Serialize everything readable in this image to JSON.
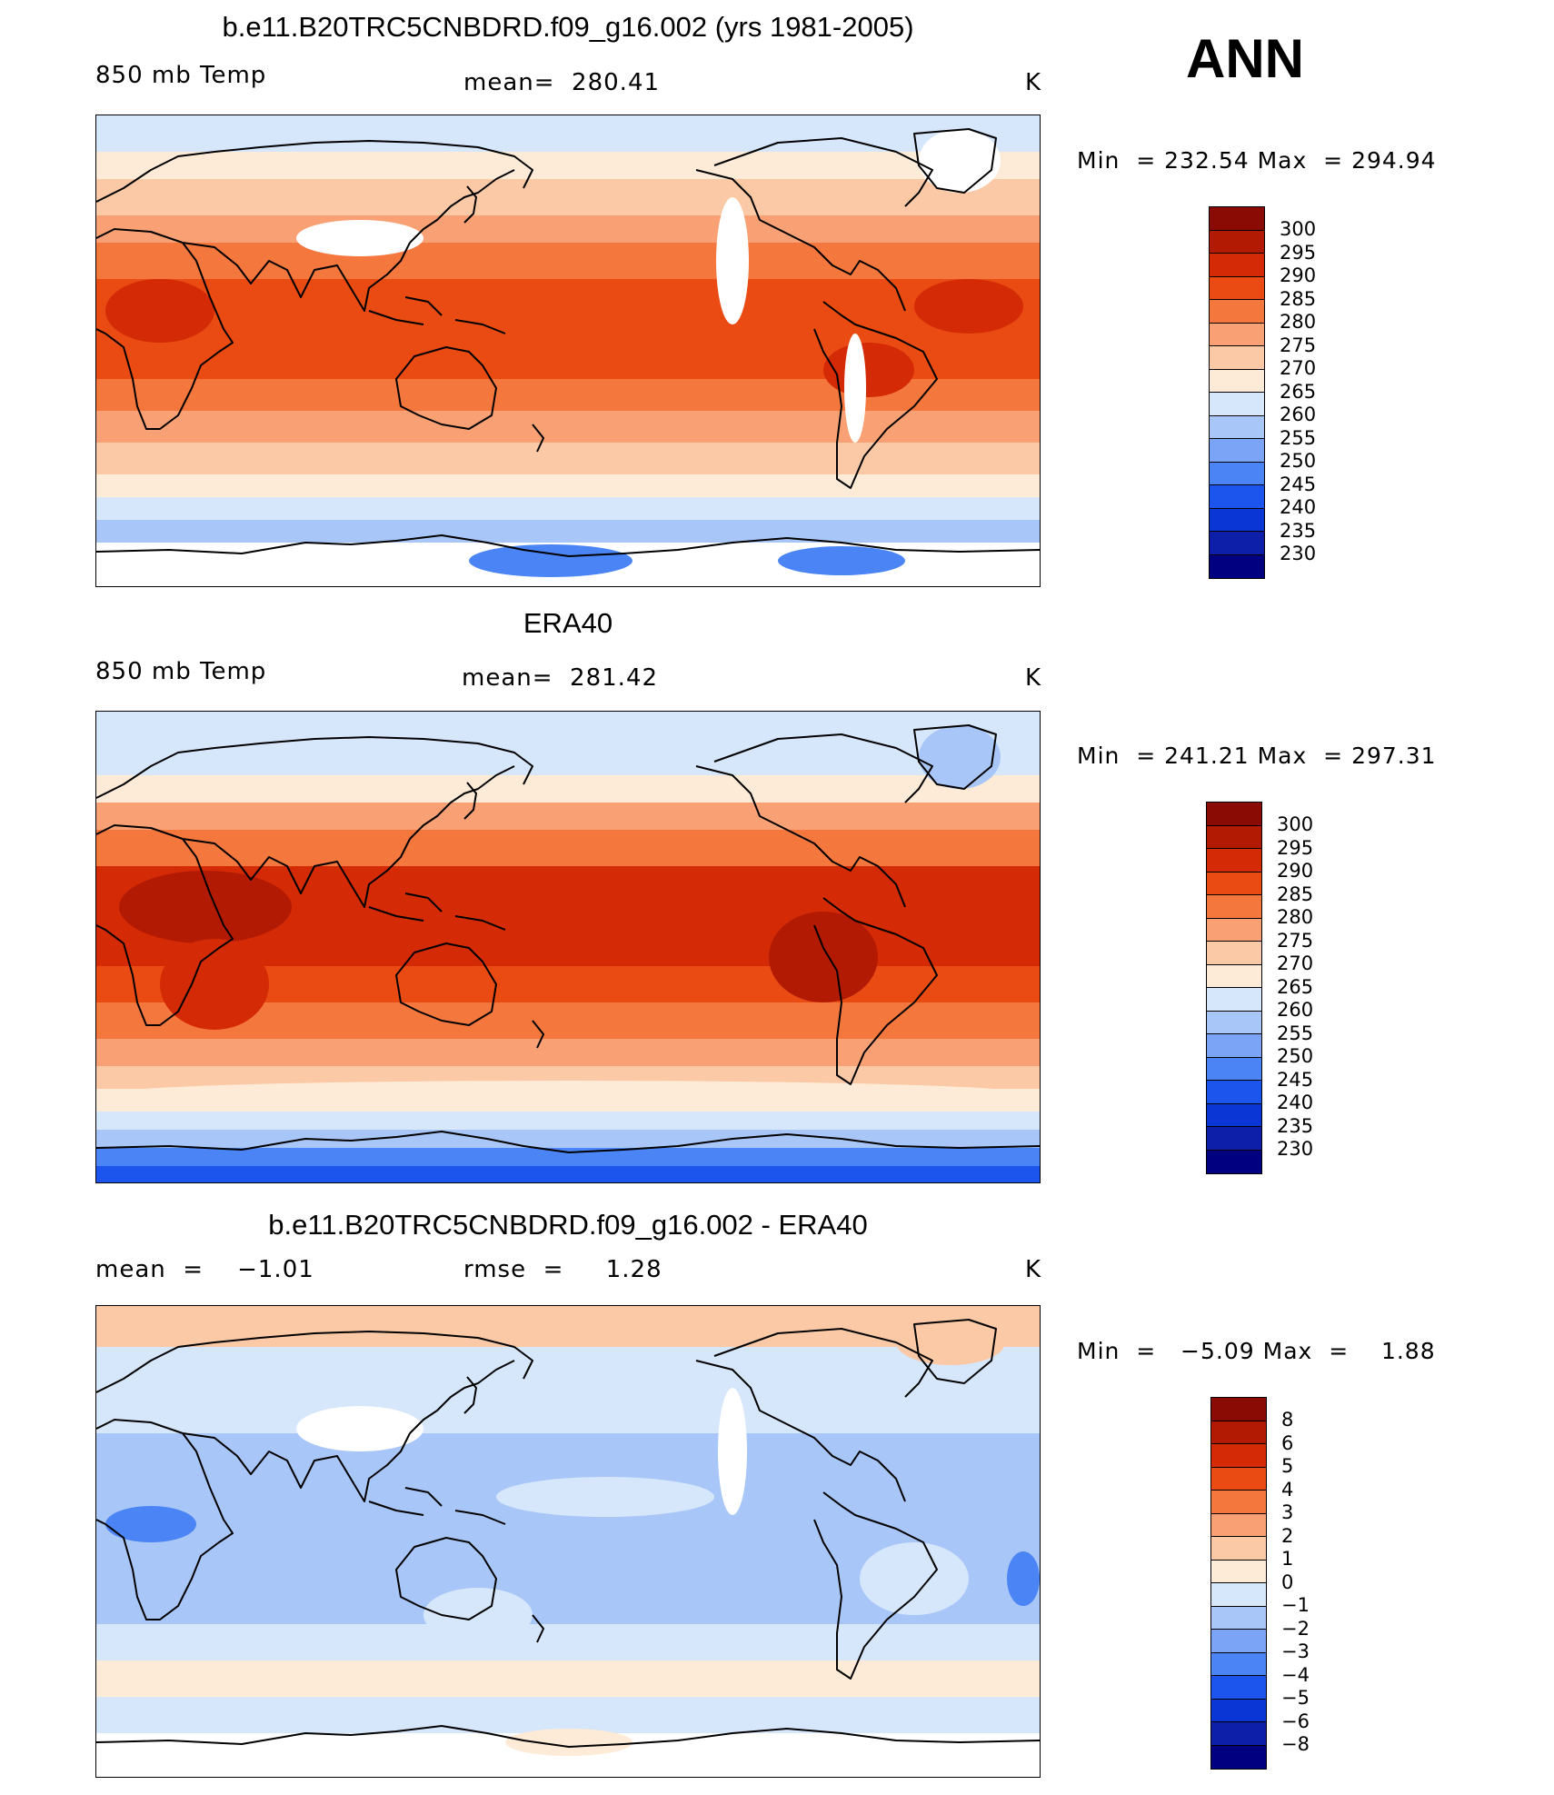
{
  "season": "ANN",
  "palette": [
    "#000080",
    "#0d1fa8",
    "#0a36d6",
    "#1c55ee",
    "#4a84f5",
    "#7ba4f7",
    "#a9c6f8",
    "#d6e6fb",
    "#fdebd8",
    "#fbc9a5",
    "#f9a174",
    "#f4773e",
    "#e94b13",
    "#d42a06",
    "#b31a04",
    "#8a0b03"
  ],
  "panels": [
    {
      "title": "b.e11.B20TRC5CNBDRD.f09_g16.002 (yrs 1981-2005)",
      "left": "850 mb Temp",
      "center": "mean=  280.41",
      "units": "K",
      "min_label": "Min  =",
      "min_value": "232.54",
      "max_label": "Max  =",
      "max_value": "294.94",
      "legend": [
        "300",
        "295",
        "290",
        "285",
        "280",
        "275",
        "270",
        "265",
        "260",
        "255",
        "250",
        "245",
        "240",
        "235",
        "230"
      ]
    },
    {
      "title": "ERA40",
      "left": "850 mb Temp",
      "center": "mean=  281.42",
      "units": "K",
      "min_label": "Min  =",
      "min_value": "241.21",
      "max_label": "Max  =",
      "max_value": "297.31",
      "legend": [
        "300",
        "295",
        "290",
        "285",
        "280",
        "275",
        "270",
        "265",
        "260",
        "255",
        "250",
        "245",
        "240",
        "235",
        "230"
      ]
    },
    {
      "title": "b.e11.B20TRC5CNBDRD.f09_g16.002 - ERA40",
      "left": "mean  =    −1.01",
      "center": "rmse  =     1.28",
      "units": "K",
      "min_label": "Min  =",
      "min_value": "−5.09",
      "max_label": "Max  =",
      "max_value": "1.88",
      "legend": [
        "8",
        "6",
        "5",
        "4",
        "3",
        "2",
        "1",
        "0",
        "−1",
        "−2",
        "−3",
        "−4",
        "−5",
        "−6",
        "−8"
      ]
    }
  ]
}
